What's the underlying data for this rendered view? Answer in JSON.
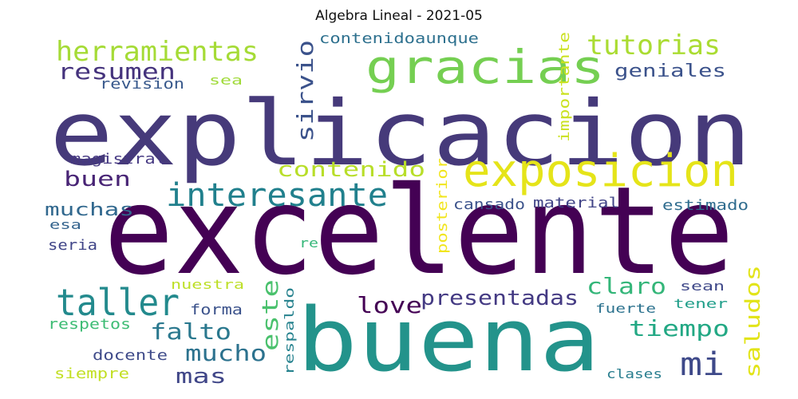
{
  "title": "Algebra Lineal - 2021-05",
  "words": [
    {
      "text": "excelente",
      "color": "#440154"
    },
    {
      "text": "explicacion",
      "color": "#463a7a"
    },
    {
      "text": "buena",
      "color": "#23938b"
    },
    {
      "text": "gracias",
      "color": "#75cf52"
    },
    {
      "text": "exposicion",
      "color": "#e5e419"
    },
    {
      "text": "interesante",
      "color": "#21808d"
    },
    {
      "text": "taller",
      "color": "#238a8d"
    },
    {
      "text": "herramientas",
      "color": "#a5db36"
    },
    {
      "text": "tutorias",
      "color": "#aadc32"
    },
    {
      "text": "resumen",
      "color": "#45337d"
    },
    {
      "text": "sirvio",
      "color": "#3b528b"
    },
    {
      "text": "contenido",
      "color": "#b8de29"
    },
    {
      "text": "claro",
      "color": "#34b679"
    },
    {
      "text": "presentadas",
      "color": "#443a83"
    },
    {
      "text": "love",
      "color": "#440154"
    },
    {
      "text": "tiempo",
      "color": "#22a884"
    },
    {
      "text": "falto",
      "color": "#2a788e"
    },
    {
      "text": "mucho",
      "color": "#2c728e"
    },
    {
      "text": "saludos",
      "color": "#e2e418"
    },
    {
      "text": "este",
      "color": "#4ac16d"
    },
    {
      "text": "mas",
      "color": "#404688"
    },
    {
      "text": "mi",
      "color": "#3e4989"
    },
    {
      "text": "buen",
      "color": "#482475"
    },
    {
      "text": "muchas",
      "color": "#31688e"
    },
    {
      "text": "geniales",
      "color": "#3b528b"
    },
    {
      "text": "contenidoaunque",
      "color": "#2d708e"
    },
    {
      "text": "importante",
      "color": "#cae11f"
    },
    {
      "text": "revision",
      "color": "#38598c"
    },
    {
      "text": "sea",
      "color": "#a0da39"
    },
    {
      "text": "magistral",
      "color": "#453882"
    },
    {
      "text": "posterior",
      "color": "#f1e51d"
    },
    {
      "text": "cansado",
      "color": "#3b528b"
    },
    {
      "text": "material",
      "color": "#414487"
    },
    {
      "text": "estimado",
      "color": "#2f6c8e"
    },
    {
      "text": "esa",
      "color": "#33638d"
    },
    {
      "text": "seria",
      "color": "#404588"
    },
    {
      "text": "re",
      "color": "#35b779"
    },
    {
      "text": "nuestra",
      "color": "#bddf26"
    },
    {
      "text": "respaldo",
      "color": "#26828e"
    },
    {
      "text": "sean",
      "color": "#3f4889"
    },
    {
      "text": "forma",
      "color": "#3b528b"
    },
    {
      "text": "tener",
      "color": "#1f9e89"
    },
    {
      "text": "fuerte",
      "color": "#2c728e"
    },
    {
      "text": "respetos",
      "color": "#3dbc74"
    },
    {
      "text": "docente",
      "color": "#3e4a89"
    },
    {
      "text": "siempre",
      "color": "#c2df23"
    },
    {
      "text": "clases",
      "color": "#287d8e"
    }
  ]
}
